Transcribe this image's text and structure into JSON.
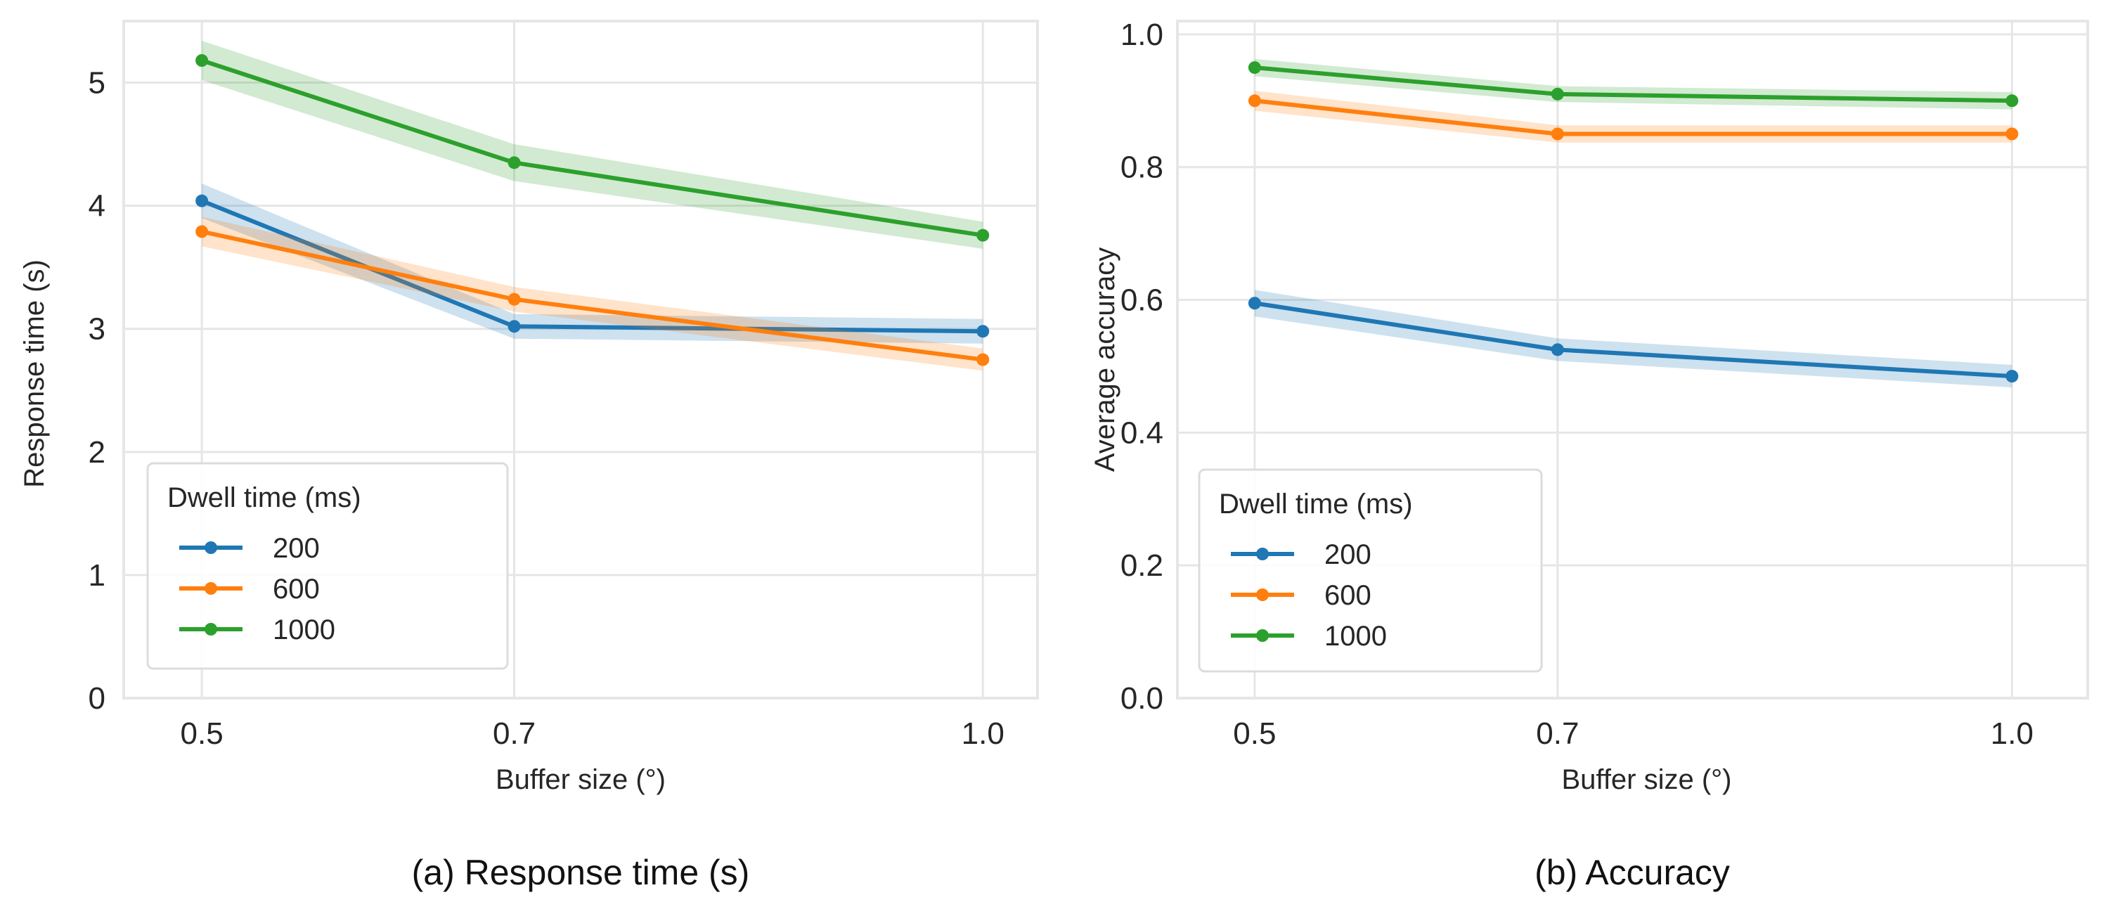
{
  "colors": {
    "200": "#1f77b4",
    "600": "#ff7f0e",
    "1000": "#2ca02c",
    "grid": "#e6e6e6"
  },
  "chart_data": [
    {
      "type": "line",
      "caption": "(a) Response time (s)",
      "xlabel": "Buffer size (°)",
      "ylabel": "Response time (s)",
      "x": [
        0.5,
        0.7,
        1.0
      ],
      "xticks": [
        "0.5",
        "0.7",
        "1.0"
      ],
      "yticks": [
        "0",
        "1",
        "2",
        "3",
        "4",
        "5"
      ],
      "xlim": [
        0.45,
        1.035
      ],
      "ylim": [
        0,
        5.5
      ],
      "grid": true,
      "legend": {
        "title": "Dwell time (ms)",
        "placement": "lower-left"
      },
      "series": [
        {
          "name": "200",
          "values": [
            4.04,
            3.02,
            2.98
          ],
          "ci_low": [
            3.9,
            2.92,
            2.88
          ],
          "ci_high": [
            4.18,
            3.12,
            3.08
          ]
        },
        {
          "name": "600",
          "values": [
            3.79,
            3.24,
            2.75
          ],
          "ci_low": [
            3.67,
            3.14,
            2.66
          ],
          "ci_high": [
            3.91,
            3.34,
            2.84
          ]
        },
        {
          "name": "1000",
          "values": [
            5.18,
            4.35,
            3.76
          ],
          "ci_low": [
            5.02,
            4.2,
            3.65
          ],
          "ci_high": [
            5.34,
            4.5,
            3.87
          ]
        }
      ]
    },
    {
      "type": "line",
      "caption": "(b) Accuracy",
      "xlabel": "Buffer size (°)",
      "ylabel": "Average accuracy",
      "x": [
        0.5,
        0.7,
        1.0
      ],
      "xticks": [
        "0.5",
        "0.7",
        "1.0"
      ],
      "yticks": [
        "0.0",
        "0.2",
        "0.4",
        "0.6",
        "0.8",
        "1.0"
      ],
      "xlim": [
        0.449,
        1.05
      ],
      "ylim": [
        0,
        1.02
      ],
      "grid": true,
      "legend": {
        "title": "Dwell time (ms)",
        "placement": "lower-left"
      },
      "series": [
        {
          "name": "200",
          "values": [
            0.595,
            0.525,
            0.485
          ],
          "ci_low": [
            0.575,
            0.508,
            0.468
          ],
          "ci_high": [
            0.615,
            0.542,
            0.502
          ]
        },
        {
          "name": "600",
          "values": [
            0.9,
            0.85,
            0.85
          ],
          "ci_low": [
            0.885,
            0.837,
            0.837
          ],
          "ci_high": [
            0.915,
            0.863,
            0.863
          ]
        },
        {
          "name": "1000",
          "values": [
            0.95,
            0.91,
            0.9
          ],
          "ci_low": [
            0.937,
            0.898,
            0.887
          ],
          "ci_high": [
            0.963,
            0.922,
            0.913
          ]
        }
      ]
    }
  ]
}
